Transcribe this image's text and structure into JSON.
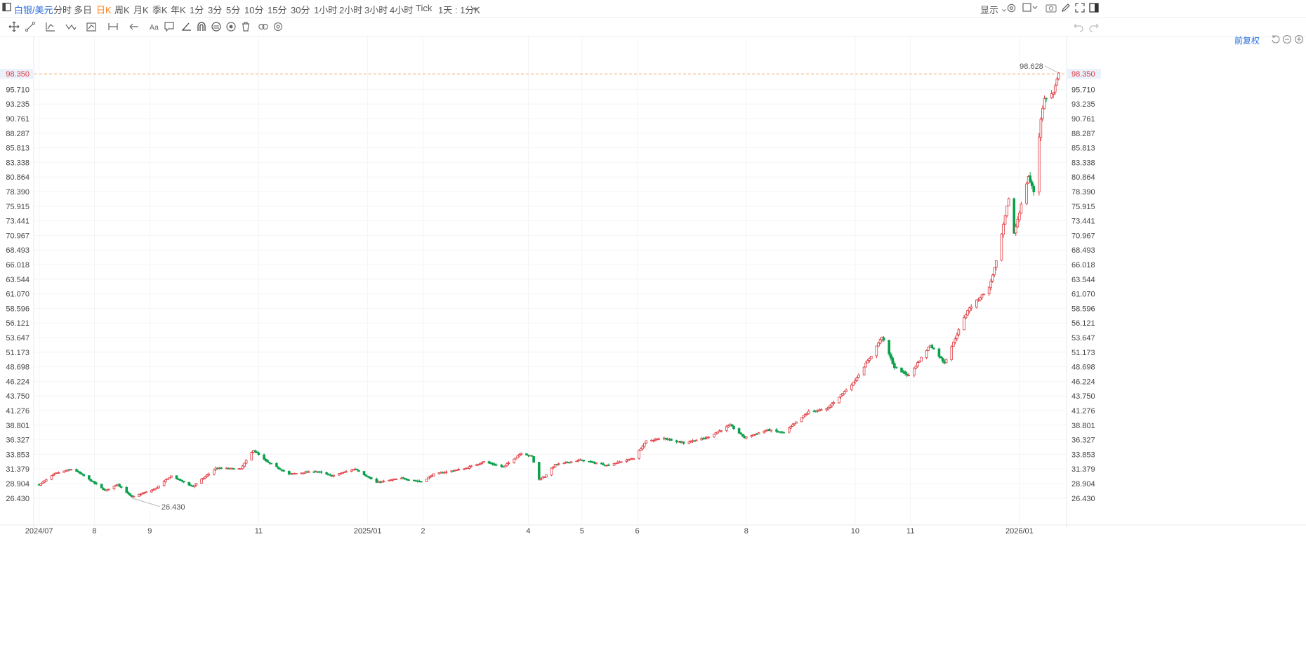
{
  "toolbar": {
    "symbol": "白银/美元",
    "periods": [
      "分时",
      "多日",
      "日K",
      "周K",
      "月K",
      "季K",
      "年K",
      "1分",
      "3分",
      "5分",
      "10分",
      "15分",
      "30分",
      "1小时",
      "2小时",
      "3小时",
      "4小时",
      "Tick",
      "1天 : 1分K"
    ],
    "active_period": "日K",
    "display_label": "显示"
  },
  "drawing_tools": [
    "move-icon",
    "line-tool-icon",
    "trend-tool-icon",
    "wave-tool-icon",
    "pattern-tool-icon",
    "measure-tool-icon",
    "arrow-tool-icon",
    "text-tool-icon",
    "comment-tool-icon",
    "angle-tool-icon",
    "magnet-icon",
    "fib-tool-icon",
    "visibility-icon",
    "trash-icon",
    "link-icon",
    "settings-icon"
  ],
  "adjust_label": "前复权",
  "colors": {
    "up": "#e0383e",
    "down": "#0aa04c",
    "accent": "#2a6fdb",
    "active": "#ff7f1a",
    "price_line": "#f4a460",
    "last_price": "#e0383e"
  },
  "chart_data": {
    "type": "candlestick",
    "symbol": "白银/美元",
    "y_ticks": [
      "98.350",
      "95.710",
      "93.235",
      "90.761",
      "88.287",
      "85.813",
      "83.338",
      "80.864",
      "78.390",
      "75.915",
      "73.441",
      "70.967",
      "68.493",
      "66.018",
      "63.544",
      "61.070",
      "58.596",
      "56.121",
      "53.647",
      "51.173",
      "48.698",
      "46.224",
      "43.750",
      "41.276",
      "38.801",
      "36.327",
      "33.853",
      "31.379",
      "28.904",
      "26.430"
    ],
    "ylim": [
      24.5,
      100.4
    ],
    "x_ticks": [
      "2024/07",
      "8",
      "9",
      "11",
      "2025/01",
      "2",
      "4",
      "5",
      "6",
      "8",
      "10",
      "11",
      "2026/01"
    ],
    "last_price": "98.350",
    "last_price_value": 98.35,
    "high_label": "98.628",
    "high_value": 98.628,
    "low_label": "26.430",
    "low_value": 26.43,
    "anchors": [
      [
        "2024-07-01",
        28.7
      ],
      [
        "2024-07-10",
        30.6
      ],
      [
        "2024-07-20",
        31.4
      ],
      [
        "2024-07-31",
        29.2
      ],
      [
        "2024-08-07",
        27.7
      ],
      [
        "2024-08-14",
        28.8
      ],
      [
        "2024-08-22",
        26.6
      ],
      [
        "2024-09-04",
        28.0
      ],
      [
        "2024-09-13",
        30.2
      ],
      [
        "2024-09-25",
        28.4
      ],
      [
        "2024-10-08",
        31.5
      ],
      [
        "2024-10-22",
        31.4
      ],
      [
        "2024-10-29",
        34.6
      ],
      [
        "2024-11-05",
        32.7
      ],
      [
        "2024-11-18",
        30.5
      ],
      [
        "2024-12-03",
        31.0
      ],
      [
        "2024-12-12",
        30.2
      ],
      [
        "2024-12-25",
        31.4
      ],
      [
        "2025-01-06",
        29.1
      ],
      [
        "2025-01-20",
        29.8
      ],
      [
        "2025-01-31",
        29.2
      ],
      [
        "2025-02-07",
        30.5
      ],
      [
        "2025-02-25",
        31.5
      ],
      [
        "2025-03-07",
        32.6
      ],
      [
        "2025-03-18",
        31.7
      ],
      [
        "2025-03-28",
        34.1
      ],
      [
        "2025-04-03",
        33.5
      ],
      [
        "2025-04-07",
        29.6
      ],
      [
        "2025-04-10",
        30.1
      ],
      [
        "2025-04-16",
        32.1
      ],
      [
        "2025-04-30",
        32.9
      ],
      [
        "2025-05-15",
        32.0
      ],
      [
        "2025-05-30",
        33.2
      ],
      [
        "2025-06-06",
        36.1
      ],
      [
        "2025-06-16",
        36.6
      ],
      [
        "2025-06-27",
        35.8
      ],
      [
        "2025-07-10",
        36.7
      ],
      [
        "2025-07-23",
        38.8
      ],
      [
        "2025-07-31",
        36.7
      ],
      [
        "2025-08-13",
        38.0
      ],
      [
        "2025-08-22",
        37.5
      ],
      [
        "2025-09-05",
        41.1
      ],
      [
        "2025-09-15",
        41.5
      ],
      [
        "2025-09-30",
        46.0
      ],
      [
        "2025-10-10",
        50.6
      ],
      [
        "2025-10-16",
        53.8
      ],
      [
        "2025-10-23",
        48.6
      ],
      [
        "2025-10-31",
        47.2
      ],
      [
        "2025-11-12",
        52.4
      ],
      [
        "2025-11-20",
        49.4
      ],
      [
        "2025-12-03",
        58.3
      ],
      [
        "2025-12-15",
        62.1
      ],
      [
        "2025-12-19",
        66.5
      ],
      [
        "2025-12-26",
        77.3
      ],
      [
        "2025-12-29",
        71.3
      ],
      [
        "2026-01-06",
        81.0
      ],
      [
        "2026-01-09",
        78.4
      ],
      [
        "2026-01-13",
        90.8
      ],
      [
        "2026-01-15",
        94.1
      ],
      [
        "2026-01-20",
        95.1
      ],
      [
        "2026-01-23",
        98.35
      ]
    ]
  }
}
